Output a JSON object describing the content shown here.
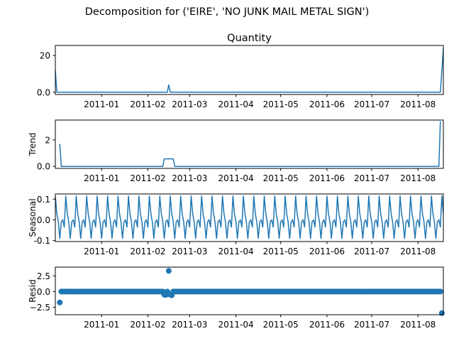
{
  "figure": {
    "suptitle": "Decomposition for ('EIRE', 'NO JUNK MAIL METAL SIGN')"
  },
  "chart_data": [
    {
      "type": "line",
      "title": "Quantity",
      "ylabel": "",
      "color": "#1f77b4",
      "xlim": [
        "2010-12-01",
        "2011-08-18"
      ],
      "ylim": [
        -1.25,
        25.5
      ],
      "y_ticks": [
        0,
        20
      ],
      "x_ticks": [
        "2011-01",
        "2011-02",
        "2011-03",
        "2011-04",
        "2011-05",
        "2011-06",
        "2011-07",
        "2011-08"
      ],
      "points": [
        {
          "x": "2010-12-01",
          "y": 12
        },
        {
          "x": "2010-12-02",
          "y": 0
        },
        {
          "x": "2011-02-14",
          "y": 0
        },
        {
          "x": "2011-02-15",
          "y": 4
        },
        {
          "x": "2011-02-16",
          "y": 0
        },
        {
          "x": "2011-08-16",
          "y": 0
        },
        {
          "x": "2011-08-18",
          "y": 24
        }
      ]
    },
    {
      "type": "line",
      "title": "",
      "ylabel": "Trend",
      "color": "#1f77b4",
      "xlim": [
        "2010-12-01",
        "2011-08-18"
      ],
      "ylim": [
        -0.15,
        3.5
      ],
      "y_ticks": [
        0,
        2
      ],
      "x_ticks": [
        "2011-01",
        "2011-02",
        "2011-03",
        "2011-04",
        "2011-05",
        "2011-06",
        "2011-07",
        "2011-08"
      ],
      "points": [
        {
          "x": "2010-12-04",
          "y": 1.7
        },
        {
          "x": "2010-12-05",
          "y": 0
        },
        {
          "x": "2011-02-11",
          "y": 0
        },
        {
          "x": "2011-02-12",
          "y": 0.57
        },
        {
          "x": "2011-02-18",
          "y": 0.57
        },
        {
          "x": "2011-02-19",
          "y": 0
        },
        {
          "x": "2011-08-15",
          "y": 0
        },
        {
          "x": "2011-08-16",
          "y": 3.4
        }
      ]
    },
    {
      "type": "line",
      "title": "",
      "ylabel": "Seasonal",
      "color": "#1f77b4",
      "xlim": [
        "2010-12-01",
        "2011-08-18"
      ],
      "ylim": [
        -0.105,
        0.125
      ],
      "y_ticks": [
        -0.1,
        0.0,
        0.1
      ],
      "x_ticks": [
        "2011-01",
        "2011-02",
        "2011-03",
        "2011-04",
        "2011-05",
        "2011-06",
        "2011-07",
        "2011-08"
      ],
      "start": "2010-12-01",
      "end": "2011-08-18",
      "weekly_pattern": [
        0.115,
        0.03,
        -0.01,
        -0.09,
        -0.01,
        0.0,
        -0.035
      ]
    },
    {
      "type": "scatter",
      "title": "",
      "ylabel": "Resid",
      "color": "#1f77b4",
      "xlim": [
        "2010-12-01",
        "2011-08-18"
      ],
      "ylim": [
        -3.7,
        3.9
      ],
      "y_ticks": [
        -2.5,
        0.0,
        2.5
      ],
      "y_tick_labels": [
        "−2.5",
        "0.0",
        "2.5"
      ],
      "x_ticks": [
        "2011-01",
        "2011-02",
        "2011-03",
        "2011-04",
        "2011-05",
        "2011-06",
        "2011-07",
        "2011-08"
      ],
      "start": "2010-12-04",
      "end": "2011-08-16",
      "baseline": 0.0,
      "outliers": [
        {
          "x": "2010-12-04",
          "y": -1.75
        },
        {
          "x": "2011-02-12",
          "y": -0.5
        },
        {
          "x": "2011-02-13",
          "y": -0.55
        },
        {
          "x": "2011-02-15",
          "y": 3.3
        },
        {
          "x": "2011-02-16",
          "y": -0.5
        },
        {
          "x": "2011-02-17",
          "y": -0.6
        },
        {
          "x": "2011-08-17",
          "y": -3.45
        }
      ]
    }
  ]
}
